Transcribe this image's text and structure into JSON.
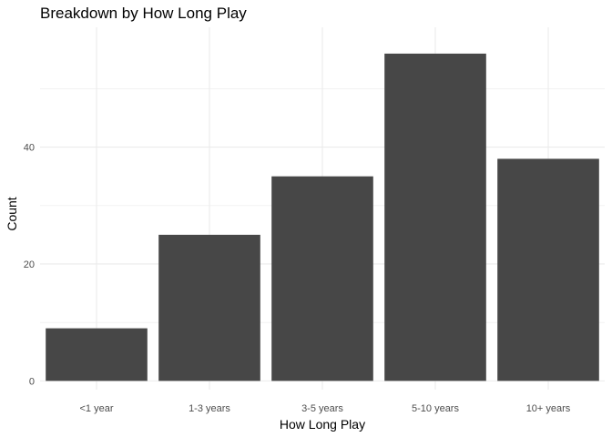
{
  "chart_data": {
    "type": "bar",
    "title": "Breakdown by How Long Play",
    "xlabel": "How Long Play",
    "ylabel": "Count",
    "categories": [
      "<1 year",
      "1-3 years",
      "3-5 years",
      "5-10 years",
      "10+ years"
    ],
    "values": [
      9,
      25,
      35,
      56,
      38
    ],
    "yticks": [
      0,
      20,
      40
    ],
    "ylim": [
      -1.5,
      60.5
    ],
    "grid": true,
    "legend": "none",
    "bar_color": "#474747",
    "grid_color": "#ebebeb"
  }
}
